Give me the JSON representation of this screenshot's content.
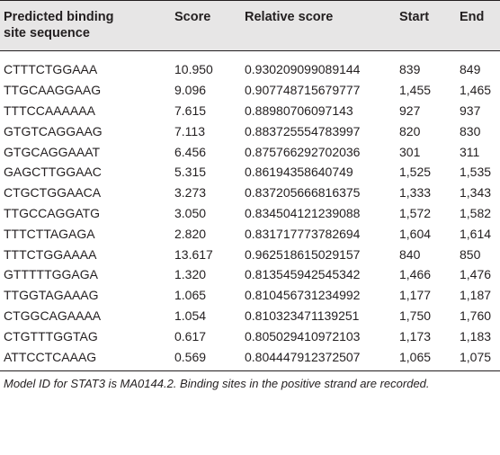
{
  "table": {
    "headers": {
      "sequence_line1": "Predicted binding",
      "sequence_line2": "site sequence",
      "score": "Score",
      "relative_score": "Relative score",
      "start": "Start",
      "end": "End"
    },
    "rows": [
      {
        "sequence": "CTTTCTGGAAA",
        "score": "10.950",
        "relative_score": "0.930209099089144",
        "start": "839",
        "end": "849"
      },
      {
        "sequence": "TTGCAAGGAAG",
        "score": "9.096",
        "relative_score": "0.907748715679777",
        "start": "1,455",
        "end": "1,465"
      },
      {
        "sequence": "TTTCCAAAAAA",
        "score": "7.615",
        "relative_score": "0.88980706097143",
        "start": "927",
        "end": "937"
      },
      {
        "sequence": "GTGTCAGGAAG",
        "score": "7.113",
        "relative_score": "0.883725554783997",
        "start": "820",
        "end": "830"
      },
      {
        "sequence": "GTGCAGGAAAT",
        "score": "6.456",
        "relative_score": "0.875766292702036",
        "start": "301",
        "end": "311"
      },
      {
        "sequence": "GAGCTTGGAAC",
        "score": "5.315",
        "relative_score": "0.86194358640749",
        "start": "1,525",
        "end": "1,535"
      },
      {
        "sequence": "CTGCTGGAACA",
        "score": "3.273",
        "relative_score": "0.837205666816375",
        "start": "1,333",
        "end": "1,343"
      },
      {
        "sequence": "TTGCCAGGATG",
        "score": "3.050",
        "relative_score": "0.834504121239088",
        "start": "1,572",
        "end": "1,582"
      },
      {
        "sequence": "TTTCTTAGAGA",
        "score": "2.820",
        "relative_score": "0.831717773782694",
        "start": "1,604",
        "end": "1,614"
      },
      {
        "sequence": "TTTCTGGAAAA",
        "score": "13.617",
        "relative_score": "0.962518615029157",
        "start": "840",
        "end": "850"
      },
      {
        "sequence": "GTTTTTGGAGA",
        "score": "1.320",
        "relative_score": "0.813545942545342",
        "start": "1,466",
        "end": "1,476"
      },
      {
        "sequence": "TTGGTAGAAAG",
        "score": "1.065",
        "relative_score": "0.810456731234992",
        "start": "1,177",
        "end": "1,187"
      },
      {
        "sequence": "CTGGCAGAAAA",
        "score": "1.054",
        "relative_score": "0.810323471139251",
        "start": "1,750",
        "end": "1,760"
      },
      {
        "sequence": "CTGTTTGGTAG",
        "score": "0.617",
        "relative_score": "0.805029410972103",
        "start": "1,173",
        "end": "1,183"
      },
      {
        "sequence": "ATTCCTCAAAG",
        "score": "0.569",
        "relative_score": "0.804447912372507",
        "start": "1,065",
        "end": "1,075"
      }
    ]
  },
  "footnote": "Model ID for STAT3 is MA0144.2. Binding sites in the positive strand are recorded."
}
